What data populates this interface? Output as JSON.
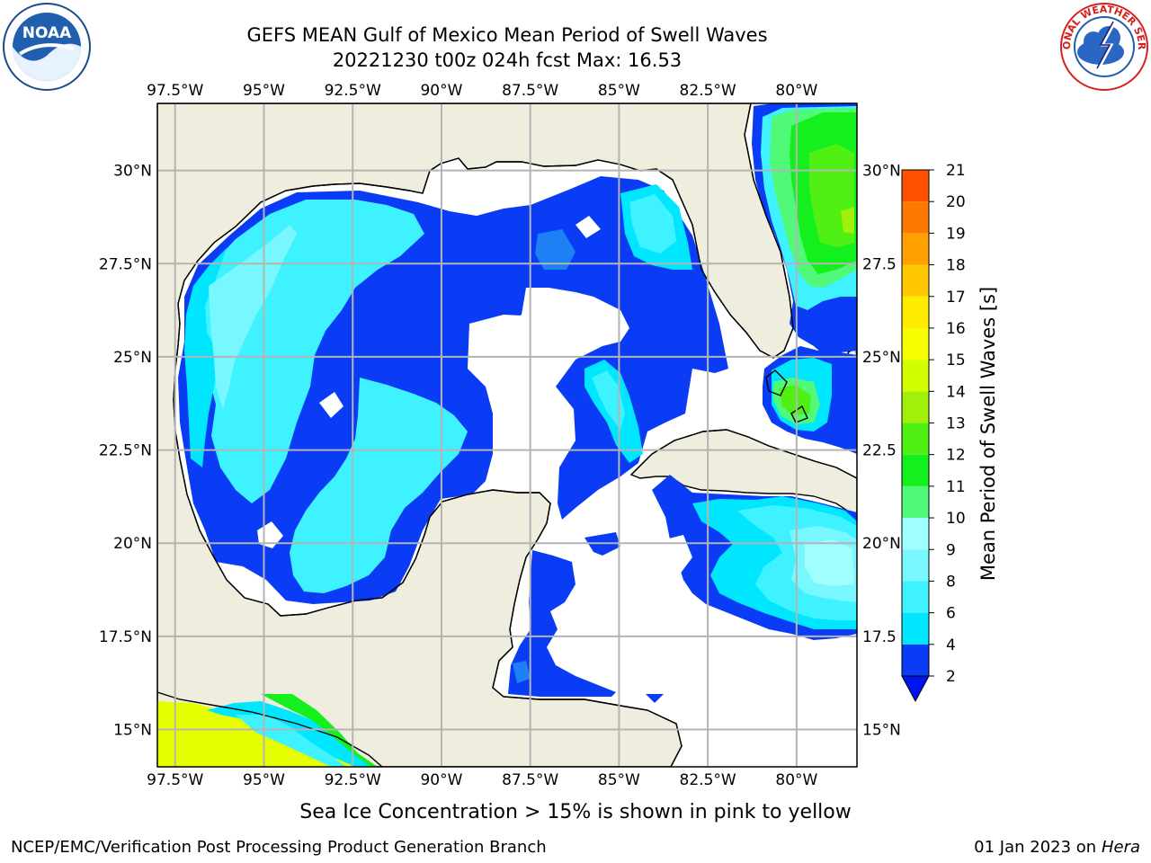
{
  "header": {
    "title_line1": "GEFS MEAN Gulf of Mexico Mean Period of Swell Waves",
    "title_line2": "20221230 t00z 024h fcst   Max: 16.53"
  },
  "logos": {
    "left": {
      "icon": "noaa-logo-icon",
      "text": "NOAA"
    },
    "right": {
      "icon": "nws-logo-icon",
      "text": "NATIONAL WEATHER SERVICE"
    }
  },
  "map": {
    "lon_labels": [
      "97.5°W",
      "95°W",
      "92.5°W",
      "90°W",
      "87.5°W",
      "85°W",
      "82.5°W",
      "80°W"
    ],
    "lon_values": [
      -97.5,
      -95,
      -92.5,
      -90,
      -87.5,
      -85,
      -82.5,
      -80
    ],
    "lat_labels_left": [
      "30°N",
      "27.5°N",
      "25°N",
      "22.5°N",
      "20°N",
      "17.5°N",
      "15°N"
    ],
    "lat_labels_right": [
      "30°N",
      "27.5",
      "25°N",
      "22.5",
      "20°N",
      "17.5",
      "15°N"
    ],
    "lat_values": [
      30,
      27.5,
      25,
      22.5,
      20,
      17.5,
      15
    ],
    "extent": {
      "lon_min": -98,
      "lon_max": -78.3,
      "lat_min": 14,
      "lat_max": 31.8
    },
    "colors": {
      "land": "#efedde",
      "ocean_no_data": "#ffffff",
      "grid": "#b0b0b0",
      "coast": "#000000"
    }
  },
  "colorbar": {
    "label": "Mean Period of Swell Waves [s]",
    "ticks": [
      "2",
      "4",
      "6",
      "8",
      "9",
      "10",
      "11",
      "12",
      "13",
      "14",
      "15",
      "16",
      "17",
      "18",
      "19",
      "20",
      "21"
    ],
    "colors": [
      "#0a3cf5",
      "#00e6ff",
      "#3ff2ff",
      "#78f7ff",
      "#a0ffff",
      "#50fa78",
      "#14f01e",
      "#50f014",
      "#a0f00a",
      "#d2ff00",
      "#f5ff00",
      "#ffeb00",
      "#ffc800",
      "#ffa000",
      "#ff7800",
      "#ff5000",
      "#ff2800",
      "#ff0000"
    ],
    "extend_below_color": "#0014f0"
  },
  "note": "Sea Ice Concentration > 15% is shown in pink to yellow",
  "footer": {
    "left": "NCEP/EMC/Verification Post Processing Product Generation Branch",
    "right_prefix": "01 Jan 2023 on ",
    "right_host": "Hera"
  }
}
